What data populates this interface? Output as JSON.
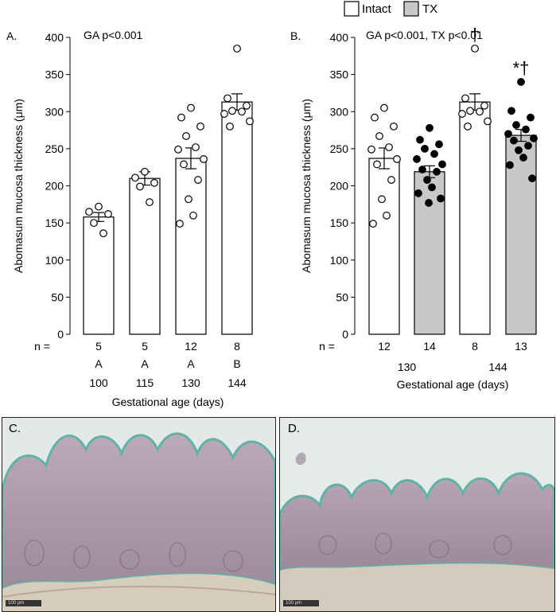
{
  "legend": {
    "intact": "Intact",
    "tx": "TX"
  },
  "chart_data": [
    {
      "type": "bar",
      "panel": "A.",
      "annotation": "GA p<0.001",
      "ylabel": "Abomasum mucosa thickness (μm)",
      "xlabel": "Gestational age (days)",
      "ylim": [
        0,
        400
      ],
      "yticks": [
        0,
        50,
        100,
        150,
        200,
        250,
        300,
        350,
        400
      ],
      "n_label": "n =",
      "categories": [
        "100",
        "115",
        "130",
        "144"
      ],
      "n": [
        "5",
        "5",
        "12",
        "8"
      ],
      "letters": [
        "A",
        "A",
        "A",
        "B"
      ],
      "values": [
        158,
        210,
        237,
        313
      ],
      "sem": [
        6,
        9,
        14,
        11
      ],
      "fill": [
        "#ffffff",
        "#ffffff",
        "#ffffff",
        "#ffffff"
      ],
      "points": [
        [
          172,
          165,
          162,
          150,
          136
        ],
        [
          219,
          211,
          204,
          199,
          178
        ],
        [
          305,
          292,
          280,
          267,
          252,
          249,
          236,
          229,
          208,
          182,
          160,
          149
        ],
        [
          385,
          318,
          308,
          301,
          300,
          297,
          287,
          280
        ]
      ],
      "point_fill": [
        "#ffffff",
        "#ffffff",
        "#ffffff",
        "#ffffff"
      ],
      "marks": [
        "",
        "",
        "",
        ""
      ]
    },
    {
      "type": "bar",
      "panel": "B.",
      "annotation": "GA p<0.001, TX p<0.01",
      "ylabel": "Abomasum mucosa thickness (μm)",
      "xlabel": "Gestational age (days)",
      "ylim": [
        0,
        400
      ],
      "yticks": [
        0,
        50,
        100,
        150,
        200,
        250,
        300,
        350,
        400
      ],
      "n_label": "n =",
      "n": [
        "12",
        "14",
        "8",
        "13"
      ],
      "groups": [
        "130",
        "144"
      ],
      "values": [
        237,
        219,
        313,
        268
      ],
      "sem": [
        14,
        8,
        11,
        8
      ],
      "fill": [
        "#ffffff",
        "#c8c8c8",
        "#ffffff",
        "#c8c8c8"
      ],
      "points": [
        [
          305,
          292,
          280,
          267,
          252,
          249,
          236,
          229,
          208,
          182,
          160,
          149
        ],
        [
          278,
          262,
          256,
          250,
          243,
          236,
          229,
          222,
          219,
          208,
          198,
          190,
          183,
          177
        ],
        [
          385,
          318,
          308,
          301,
          300,
          297,
          287,
          280
        ],
        [
          340,
          301,
          292,
          282,
          276,
          270,
          264,
          261,
          254,
          248,
          238,
          228,
          210
        ]
      ],
      "point_fill": [
        "#ffffff",
        "#000000",
        "#ffffff",
        "#000000"
      ],
      "marks": [
        "",
        "",
        "†",
        "*†"
      ]
    }
  ],
  "images": [
    {
      "label": "C.",
      "scale": "100 μm"
    },
    {
      "label": "D.",
      "scale": "100 μm"
    }
  ]
}
